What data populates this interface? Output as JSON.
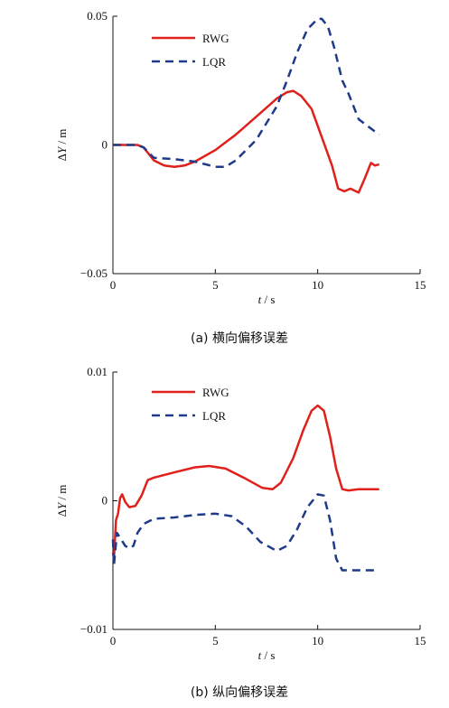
{
  "chart_data": [
    {
      "type": "line",
      "caption": "(a)  横向偏移误差",
      "xlabel_var": "t",
      "xlabel_unit": " / s",
      "ylabel_prefix": "Δ",
      "ylabel_var": "Y",
      "ylabel_unit": " / m",
      "xlim": [
        0,
        15
      ],
      "ylim": [
        -0.05,
        0.05
      ],
      "xticks": [
        0,
        5,
        10,
        15
      ],
      "xtick_labels": [
        "0",
        "5",
        "10",
        "15"
      ],
      "yticks": [
        -0.05,
        0,
        0.05
      ],
      "ytick_labels": [
        "−0.05",
        "0",
        "0.05"
      ],
      "grid": false,
      "legend_position": "top-left",
      "series": [
        {
          "name": "RWG",
          "color": "#e0201b",
          "style": "solid",
          "x": [
            0,
            1.2,
            1.5,
            2,
            2.5,
            3,
            3.5,
            4,
            5,
            6,
            7,
            8,
            8.5,
            8.8,
            9.2,
            9.7,
            10.2,
            10.7,
            11.0,
            11.3,
            11.6,
            12.0,
            12.3,
            12.6,
            12.8,
            13.0
          ],
          "y": [
            0,
            0,
            -0.001,
            -0.006,
            -0.008,
            -0.0085,
            -0.008,
            -0.0065,
            -0.002,
            0.004,
            0.011,
            0.018,
            0.0205,
            0.021,
            0.019,
            0.014,
            0.003,
            -0.008,
            -0.017,
            -0.018,
            -0.017,
            -0.0185,
            -0.013,
            -0.007,
            -0.008,
            -0.0075
          ]
        },
        {
          "name": "LQR",
          "color": "#1f3a88",
          "style": "dashed",
          "x": [
            0,
            1.2,
            1.5,
            2,
            3,
            4,
            5,
            5.5,
            6,
            7,
            8,
            8.5,
            9,
            9.5,
            10,
            10.2,
            10.5,
            10.8,
            11.2,
            11.5,
            12,
            12.5,
            13.0
          ],
          "y": [
            0,
            0,
            -0.001,
            -0.005,
            -0.0055,
            -0.0065,
            -0.0085,
            -0.0085,
            -0.006,
            0.002,
            0.015,
            0.025,
            0.036,
            0.045,
            0.049,
            0.049,
            0.046,
            0.038,
            0.025,
            0.02,
            0.01,
            0.007,
            0.004
          ]
        }
      ]
    },
    {
      "type": "line",
      "caption": "(b)  纵向偏移误差",
      "xlabel_var": "t",
      "xlabel_unit": " / s",
      "ylabel_prefix": "Δ",
      "ylabel_var": "Y",
      "ylabel_unit": " / m",
      "xlim": [
        0,
        15
      ],
      "ylim": [
        -0.01,
        0.01
      ],
      "xticks": [
        0,
        5,
        10,
        15
      ],
      "xtick_labels": [
        "0",
        "5",
        "10",
        "15"
      ],
      "yticks": [
        -0.01,
        0,
        0.01
      ],
      "ytick_labels": [
        "−0.01",
        "0",
        "0.01"
      ],
      "grid": false,
      "legend_position": "top-left",
      "series": [
        {
          "name": "RWG",
          "color": "#e0201b",
          "style": "solid",
          "x": [
            0,
            0.05,
            0.15,
            0.25,
            0.35,
            0.45,
            0.6,
            0.8,
            1.1,
            1.4,
            1.7,
            2.0,
            3,
            4,
            4.7,
            5.5,
            6.5,
            7.3,
            7.8,
            8.2,
            8.8,
            9.3,
            9.7,
            10.0,
            10.3,
            10.6,
            10.9,
            11.2,
            11.5,
            12.0,
            13.0
          ],
          "y": [
            -0.004,
            -0.0045,
            -0.0015,
            -0.001,
            0.0002,
            0.0005,
            -0.0001,
            -0.0005,
            -0.0004,
            0.0004,
            0.0016,
            0.0018,
            0.0022,
            0.0026,
            0.0027,
            0.0025,
            0.0017,
            0.001,
            0.0009,
            0.0014,
            0.0033,
            0.0055,
            0.007,
            0.0074,
            0.007,
            0.005,
            0.0025,
            0.0009,
            0.0008,
            0.0009,
            0.0009
          ]
        },
        {
          "name": "LQR",
          "color": "#1f3a88",
          "style": "dashed",
          "x": [
            0,
            0.05,
            0.2,
            0.4,
            0.6,
            0.8,
            1.0,
            1.2,
            1.5,
            2.0,
            3,
            4,
            5,
            5.8,
            6.5,
            7.2,
            8.0,
            8.5,
            9,
            9.5,
            10.0,
            10.3,
            10.6,
            10.9,
            11.2,
            12.0,
            13.0
          ],
          "y": [
            -0.003,
            -0.005,
            -0.0025,
            -0.003,
            -0.0035,
            -0.0037,
            -0.0035,
            -0.0025,
            -0.0018,
            -0.0014,
            -0.0013,
            -0.0011,
            -0.001,
            -0.0012,
            -0.002,
            -0.0032,
            -0.0039,
            -0.0035,
            -0.0022,
            -0.0005,
            0.0005,
            0.0004,
            -0.0015,
            -0.0045,
            -0.0054,
            -0.0054,
            -0.0054
          ]
        }
      ]
    }
  ]
}
